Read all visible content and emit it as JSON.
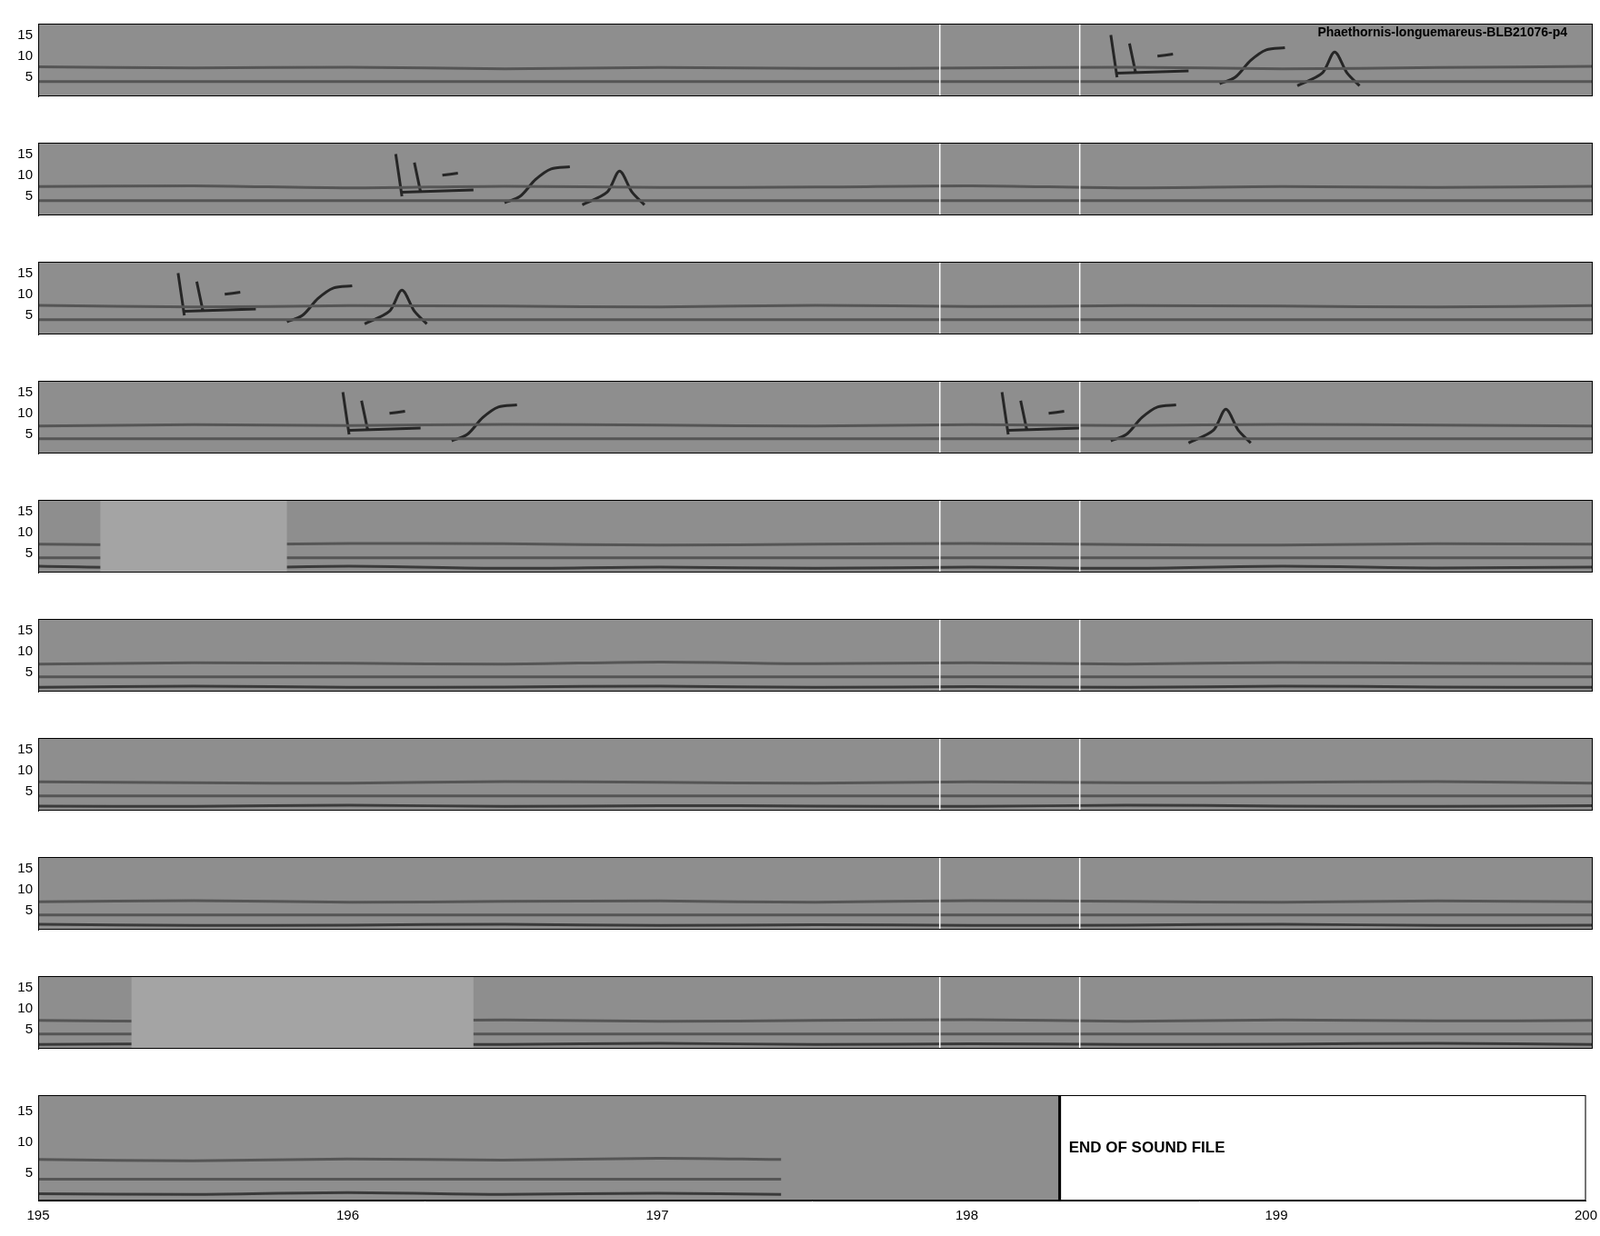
{
  "chart_data": [
    {
      "type": "line",
      "title": "Phaethornis-longuemareus-BLB21076-p4",
      "xlim": [
        195,
        200
      ],
      "ylim": [
        0.5,
        17.7
      ],
      "yticks": [
        5,
        10,
        15
      ],
      "tick_labels": "y",
      "grid": false,
      "vlines": [
        197.9,
        198.35
      ],
      "series": [
        {
          "color": "#555555",
          "x": [
            195,
            195.5,
            196,
            196.5,
            197,
            197.5,
            198,
            198.5,
            199,
            199.5,
            200
          ],
          "values": [
            7.5,
            7.2,
            7.4,
            7.0,
            7.3,
            7.1,
            7.2,
            7.4,
            7.0,
            7.3,
            7.6
          ]
        },
        {
          "color": "#555555",
          "x": [
            195,
            200
          ],
          "values": [
            4,
            4
          ]
        },
        {
          "color": "#262626",
          "x": [
            198.45,
            198.47,
            198.47,
            198.51,
            198.53,
            198.53,
            198.47,
            198.7,
            198.7,
            198.6,
            198.65,
            198.65,
            198.8,
            198.85,
            198.9,
            198.95,
            199.01,
            199.01,
            199.05,
            199.13,
            199.17,
            199.21,
            199.25
          ],
          "values": [
            15,
            5,
            null,
            13,
            6,
            null,
            6,
            6.5,
            null,
            10,
            10.5,
            null,
            3.5,
            5,
            9,
            11.5,
            12,
            null,
            3,
            6,
            11,
            6,
            3
          ]
        }
      ]
    },
    {
      "type": "line",
      "xlim": [
        195,
        200
      ],
      "ylim": [
        0.5,
        17.7
      ],
      "yticks": [
        5,
        10,
        15
      ],
      "tick_labels": "y",
      "grid": false,
      "vlines": [
        197.9,
        198.35
      ],
      "series": [
        {
          "color": "#555555",
          "x": [
            195,
            195.5,
            196,
            196.5,
            197,
            197.5,
            198,
            198.5,
            199,
            199.5,
            200
          ],
          "values": [
            7.3,
            7.5,
            7.0,
            7.4,
            7.1,
            7.2,
            7.5,
            7.0,
            7.3,
            7.1,
            7.4
          ]
        },
        {
          "color": "#555555",
          "x": [
            195,
            200
          ],
          "values": [
            4,
            4
          ]
        },
        {
          "color": "#262626",
          "x": [
            196.15,
            196.17,
            196.17,
            196.21,
            196.23,
            196.23,
            196.17,
            196.4,
            196.4,
            196.3,
            196.35,
            196.35,
            196.5,
            196.55,
            196.6,
            196.65,
            196.71,
            196.71,
            196.75,
            196.83,
            196.87,
            196.91,
            196.95
          ],
          "values": [
            15,
            5,
            null,
            13,
            6,
            null,
            6,
            6.5,
            null,
            10,
            10.5,
            null,
            3.5,
            5,
            9,
            11.5,
            12,
            null,
            3,
            6,
            11,
            6,
            3
          ]
        }
      ]
    },
    {
      "type": "line",
      "xlim": [
        195,
        200
      ],
      "ylim": [
        0.5,
        17.7
      ],
      "yticks": [
        5,
        10,
        15
      ],
      "tick_labels": "y",
      "grid": false,
      "vlines": [
        197.9,
        198.35
      ],
      "series": [
        {
          "color": "#555555",
          "x": [
            195,
            195.5,
            196,
            196.5,
            197,
            197.5,
            198,
            198.5,
            199,
            199.5,
            200
          ],
          "values": [
            7.4,
            7.0,
            7.3,
            7.2,
            7.0,
            7.4,
            7.1,
            7.3,
            7.2,
            7.0,
            7.3
          ]
        },
        {
          "color": "#555555",
          "x": [
            195,
            200
          ],
          "values": [
            4,
            4
          ]
        },
        {
          "color": "#262626",
          "x": [
            195.45,
            195.47,
            195.47,
            195.51,
            195.53,
            195.53,
            195.47,
            195.7,
            195.7,
            195.6,
            195.65,
            195.65,
            195.8,
            195.85,
            195.9,
            195.95,
            196.01,
            196.01,
            196.05,
            196.13,
            196.17,
            196.21,
            196.25
          ],
          "values": [
            15,
            5,
            null,
            13,
            6,
            null,
            6,
            6.5,
            null,
            10,
            10.5,
            null,
            3.5,
            5,
            9,
            11.5,
            12,
            null,
            3,
            6,
            11,
            6,
            3
          ]
        }
      ]
    },
    {
      "type": "line",
      "xlim": [
        195,
        200
      ],
      "ylim": [
        0.5,
        17.7
      ],
      "yticks": [
        5,
        10,
        15
      ],
      "tick_labels": "y",
      "grid": false,
      "vlines": [
        197.9,
        198.35
      ],
      "series": [
        {
          "color": "#555555",
          "x": [
            195,
            195.5,
            196,
            196.5,
            197,
            197.5,
            198,
            198.5,
            199,
            199.5,
            200
          ],
          "values": [
            7.0,
            7.3,
            7.1,
            7.4,
            7.2,
            7.0,
            7.3,
            7.1,
            7.4,
            7.2,
            7.0
          ]
        },
        {
          "color": "#555555",
          "x": [
            195,
            200
          ],
          "values": [
            4,
            4
          ]
        },
        {
          "color": "#262626",
          "x": [
            195.98,
            196,
            196,
            196.04,
            196.06,
            196.06,
            196,
            196.23,
            196.23,
            196.13,
            196.18,
            196.18,
            196.33,
            196.38,
            196.43,
            196.48,
            196.54
          ],
          "values": [
            15,
            5,
            null,
            13,
            6,
            null,
            6,
            6.5,
            null,
            10,
            10.5,
            null,
            3.5,
            5,
            9,
            11.5,
            12
          ]
        },
        {
          "color": "#262626",
          "x": [
            198.1,
            198.12,
            198.12,
            198.16,
            198.18,
            198.18,
            198.12,
            198.35,
            198.35,
            198.25,
            198.3,
            198.3,
            198.45,
            198.5,
            198.55,
            198.6,
            198.66,
            198.66,
            198.7,
            198.78,
            198.82,
            198.86,
            198.9
          ],
          "values": [
            15,
            5,
            null,
            13,
            6,
            null,
            6,
            6.5,
            null,
            10,
            10.5,
            null,
            3.5,
            5,
            9,
            11.5,
            12,
            null,
            3,
            6,
            11,
            6,
            3
          ]
        }
      ]
    },
    {
      "type": "line",
      "xlim": [
        195,
        200
      ],
      "ylim": [
        0.5,
        17.7
      ],
      "yticks": [
        5,
        10,
        15
      ],
      "tick_labels": "y",
      "grid": false,
      "vlines": [
        197.9,
        198.35
      ],
      "blank": [
        195.2,
        195.8
      ],
      "series": [
        {
          "color": "#555555",
          "x": [
            195,
            195.5,
            196,
            196.5,
            197,
            197.5,
            198,
            198.5,
            199,
            199.5,
            200
          ],
          "values": [
            7.2,
            7.0,
            7.4,
            7.3,
            7.0,
            7.2,
            7.4,
            7.1,
            7.0,
            7.3,
            7.2
          ]
        },
        {
          "color": "#555555",
          "x": [
            195,
            200
          ],
          "values": [
            4,
            4
          ]
        },
        {
          "color": "#3a3a3a",
          "x": [
            195,
            195.5,
            196,
            196.5,
            197,
            197.5,
            198,
            198.5,
            199,
            199.5,
            200
          ],
          "values": [
            2.0,
            1.5,
            2.0,
            1.5,
            1.8,
            1.5,
            1.8,
            1.5,
            2.0,
            1.6,
            1.8
          ]
        }
      ]
    },
    {
      "type": "line",
      "xlim": [
        195,
        200
      ],
      "ylim": [
        0.5,
        17.7
      ],
      "yticks": [
        5,
        10,
        15
      ],
      "tick_labels": "y",
      "grid": false,
      "vlines": [
        197.9,
        198.35
      ],
      "series": [
        {
          "color": "#555555",
          "x": [
            195,
            195.5,
            196,
            196.5,
            197,
            197.5,
            198,
            198.5,
            199,
            199.5,
            200
          ],
          "values": [
            7.0,
            7.3,
            7.2,
            7.0,
            7.5,
            7.1,
            7.3,
            7.0,
            7.4,
            7.2,
            7.1
          ]
        },
        {
          "color": "#555555",
          "x": [
            195,
            200
          ],
          "values": [
            4,
            4
          ]
        },
        {
          "color": "#3a3a3a",
          "x": [
            195,
            195.5,
            196,
            196.5,
            197,
            197.5,
            198,
            198.5,
            199,
            199.5,
            200
          ],
          "values": [
            1.5,
            1.8,
            1.5,
            1.6,
            1.8,
            1.5,
            1.7,
            1.5,
            1.8,
            1.6,
            1.5
          ]
        }
      ]
    },
    {
      "type": "line",
      "xlim": [
        195,
        200
      ],
      "ylim": [
        0.5,
        17.7
      ],
      "yticks": [
        5,
        10,
        15
      ],
      "tick_labels": "y",
      "grid": false,
      "vlines": [
        197.9,
        198.35
      ],
      "series": [
        {
          "color": "#555555",
          "x": [
            195,
            195.5,
            196,
            196.5,
            197,
            197.5,
            198,
            198.5,
            199,
            199.5,
            200
          ],
          "values": [
            7.3,
            7.1,
            7.0,
            7.4,
            7.2,
            7.0,
            7.3,
            7.1,
            7.2,
            7.4,
            7.0
          ]
        },
        {
          "color": "#555555",
          "x": [
            195,
            200
          ],
          "values": [
            4,
            4
          ]
        },
        {
          "color": "#3a3a3a",
          "x": [
            195,
            195.5,
            196,
            196.5,
            197,
            197.5,
            198,
            198.5,
            199,
            199.5,
            200
          ],
          "values": [
            1.6,
            1.5,
            1.8,
            1.5,
            1.7,
            1.6,
            1.5,
            1.8,
            1.6,
            1.5,
            1.7
          ]
        }
      ]
    },
    {
      "type": "line",
      "xlim": [
        195,
        200
      ],
      "ylim": [
        0.5,
        17.7
      ],
      "yticks": [
        5,
        10,
        15
      ],
      "tick_labels": "y",
      "grid": false,
      "vlines": [
        197.9,
        198.35
      ],
      "series": [
        {
          "color": "#555555",
          "x": [
            195,
            195.5,
            196,
            196.5,
            197,
            197.5,
            198,
            198.5,
            199,
            199.5,
            200
          ],
          "values": [
            7.1,
            7.4,
            7.0,
            7.2,
            7.3,
            7.0,
            7.4,
            7.2,
            7.0,
            7.3,
            7.1
          ]
        },
        {
          "color": "#555555",
          "x": [
            195,
            200
          ],
          "values": [
            4,
            4
          ]
        },
        {
          "color": "#3a3a3a",
          "x": [
            195,
            195.5,
            196,
            196.5,
            197,
            197.5,
            198,
            198.5,
            199,
            199.5,
            200
          ],
          "values": [
            1.8,
            1.5,
            1.6,
            1.8,
            1.5,
            1.7,
            1.5,
            1.6,
            1.8,
            1.5,
            1.6
          ]
        }
      ]
    },
    {
      "type": "line",
      "xlim": [
        195,
        200
      ],
      "ylim": [
        0.5,
        17.7
      ],
      "yticks": [
        5,
        10,
        15
      ],
      "tick_labels": "y",
      "grid": false,
      "vlines": [
        197.9,
        198.35
      ],
      "blank": [
        195.3,
        196.4
      ],
      "series": [
        {
          "color": "#555555",
          "x": [
            195,
            195.5,
            196,
            196.5,
            197,
            197.5,
            198,
            198.5,
            199,
            199.5,
            200
          ],
          "values": [
            7.2,
            7.0,
            7.1,
            7.3,
            7.0,
            7.2,
            7.4,
            7.0,
            7.3,
            7.1,
            7.2
          ]
        },
        {
          "color": "#555555",
          "x": [
            195,
            200
          ],
          "values": [
            4,
            4
          ]
        },
        {
          "color": "#3a3a3a",
          "x": [
            195,
            195.5,
            196,
            196.5,
            197,
            197.5,
            198,
            198.5,
            199,
            199.5,
            200
          ],
          "values": [
            1.5,
            1.7,
            1.6,
            1.5,
            1.8,
            1.5,
            1.7,
            1.5,
            1.6,
            1.8,
            1.5
          ]
        }
      ]
    },
    {
      "type": "line",
      "xlim": [
        195,
        200
      ],
      "ylim": [
        0.5,
        17.7
      ],
      "xticks": [
        195,
        196,
        197,
        198,
        199,
        200
      ],
      "yticks": [
        5,
        10,
        15
      ],
      "grid": false,
      "annotation": {
        "text": "END OF SOUND FILE",
        "x": 198.3
      },
      "series": [
        {
          "color": "#555555",
          "x": [
            195,
            195.5,
            196,
            196.5,
            197,
            197.4
          ],
          "values": [
            7.2,
            7.0,
            7.3,
            7.1,
            7.4,
            7.2
          ]
        },
        {
          "color": "#555555",
          "x": [
            195,
            197.4
          ],
          "values": [
            4,
            4
          ]
        },
        {
          "color": "#3a3a3a",
          "x": [
            195,
            195.5,
            196,
            196.5,
            197,
            197.4
          ],
          "values": [
            1.6,
            1.5,
            1.8,
            1.5,
            1.7,
            1.5
          ]
        }
      ]
    }
  ]
}
